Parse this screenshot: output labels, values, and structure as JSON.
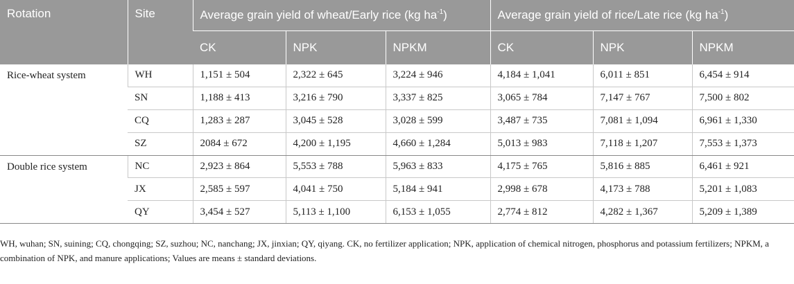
{
  "header": {
    "rotation": "Rotation",
    "site": "Site",
    "group1_text": "Average grain yield of wheat/Early rice (kg ha",
    "group2_text": "Average grain yield of rice/Late rice (kg ha",
    "unit_sup": "-1",
    "close_paren": ")",
    "sub": [
      "CK",
      "NPK",
      "NPKM",
      "CK",
      "NPK",
      "NPKM"
    ]
  },
  "groups": [
    {
      "rotation": "Rice-wheat system",
      "rows": [
        {
          "site": "WH",
          "values": [
            "1,151 ± 504",
            "2,322 ± 645",
            "3,224 ± 946",
            "4,184 ± 1,041",
            "6,011 ± 851",
            "6,454 ± 914"
          ]
        },
        {
          "site": "SN",
          "values": [
            "1,188 ± 413",
            "3,216 ± 790",
            "3,337 ± 825",
            "3,065 ± 784",
            "7,147 ± 767",
            "7,500 ± 802"
          ]
        },
        {
          "site": "CQ",
          "values": [
            "1,283 ± 287",
            "3,045 ± 528",
            "3,028 ± 599",
            "3,487 ± 735",
            "7,081 ± 1,094",
            "6,961 ± 1,330"
          ]
        },
        {
          "site": "SZ",
          "values": [
            "2084 ± 672",
            "4,200 ± 1,195",
            "4,660 ± 1,284",
            "5,013 ± 983",
            "7,118 ± 1,207",
            "7,553 ± 1,373"
          ]
        }
      ]
    },
    {
      "rotation": "Double rice system",
      "rows": [
        {
          "site": "NC",
          "values": [
            "2,923 ± 864",
            "5,553 ± 788",
            "5,963 ± 833",
            "4,175 ± 765",
            "5,816 ± 885",
            "6,461 ± 921"
          ]
        },
        {
          "site": "JX",
          "values": [
            "2,585 ± 597",
            "4,041 ± 750",
            "5,184 ± 941",
            "2,998 ± 678",
            "4,173 ± 788",
            "5,201 ± 1,083"
          ]
        },
        {
          "site": "QY",
          "values": [
            "3,454 ± 527",
            "5,113 ± 1,100",
            "6,153 ± 1,055",
            "2,774 ± 812",
            "4,282 ± 1,367",
            "5,209 ± 1,389"
          ]
        }
      ]
    }
  ],
  "footnote": "WH, wuhan; SN, suining; CQ, chongqing; SZ, suzhou; NC, nanchang; JX, jinxian; QY, qiyang. CK, no fertilizer application; NPK, application of chemical nitrogen, phosphorus and potassium fertilizers; NPKM, a combination of NPK, and manure applications; Values are means ± standard deviations."
}
